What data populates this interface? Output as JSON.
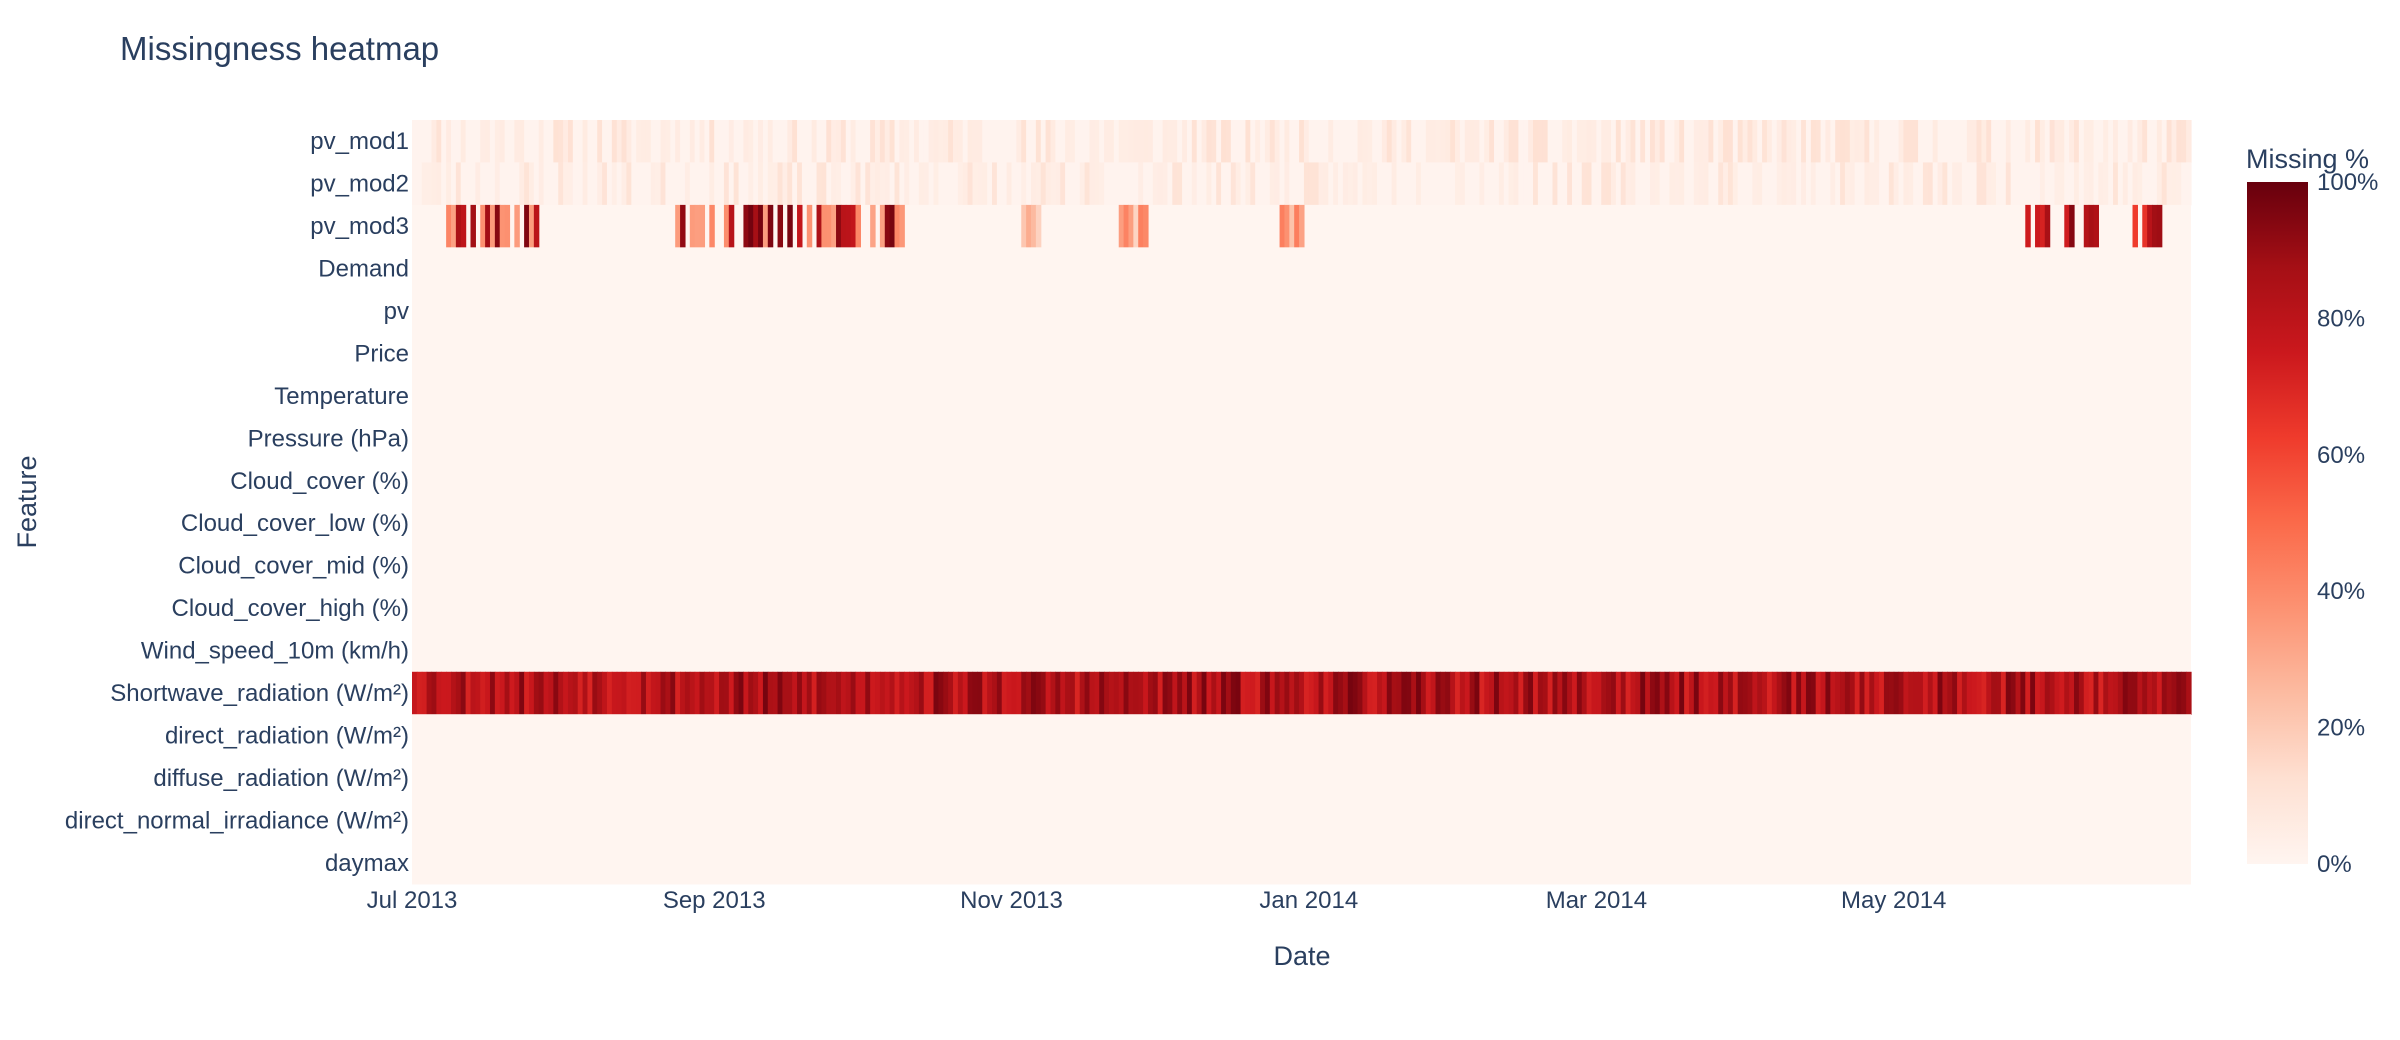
{
  "chart_data": {
    "type": "heatmap",
    "title": "Missingness heatmap",
    "xlabel": "Date",
    "ylabel": "Feature",
    "x_range": [
      "2013-07-01",
      "2014-06-30"
    ],
    "x_ticks": [
      {
        "date": "2013-07-01",
        "label": "Jul 2013"
      },
      {
        "date": "2013-09-01",
        "label": "Sep 2013"
      },
      {
        "date": "2013-11-01",
        "label": "Nov 2013"
      },
      {
        "date": "2014-01-01",
        "label": "Jan 2014"
      },
      {
        "date": "2014-03-01",
        "label": "Mar 2014"
      },
      {
        "date": "2014-05-01",
        "label": "May 2014"
      }
    ],
    "features": [
      "pv_mod1",
      "pv_mod2",
      "pv_mod3",
      "Demand",
      "pv",
      "Price",
      "Temperature",
      "Pressure (hPa)",
      "Cloud_cover (%)",
      "Cloud_cover_low (%)",
      "Cloud_cover_mid (%)",
      "Cloud_cover_high (%)",
      "Wind_speed_10m (km/h)",
      "Shortwave_radiation (W/m²)",
      "direct_radiation (W/m²)",
      "diffuse_radiation (W/m²)",
      "direct_normal_irradiance (W/m²)",
      "daymax"
    ],
    "series_profiles": [
      {
        "name": "pv_mod1",
        "typical_missing_pct": "2–10% daily, scattered"
      },
      {
        "name": "pv_mod2",
        "typical_missing_pct": "1–8% daily, scattered"
      },
      {
        "name": "pv_mod3",
        "typical_missing_pct": "0% except bursts Jul–Aug 2013 (up to ~100%) and mid-June 2014 (~60–90%)"
      },
      {
        "name": "Shortwave_radiation (W/m²)",
        "typical_missing_pct": "≈70–95% every day"
      },
      {
        "name": "all other features",
        "typical_missing_pct": "0%"
      }
    ],
    "colorscale": "Reds",
    "colorscale_stops": [
      "#fff5f0",
      "#fee0d2",
      "#fcbba1",
      "#fc9272",
      "#fb6a4a",
      "#ef3b2c",
      "#cb181d",
      "#a50f15",
      "#67000d"
    ],
    "colorbar": {
      "title": "Missing %",
      "range": [
        0,
        100
      ],
      "ticks": [
        {
          "value": 0,
          "label": "0%"
        },
        {
          "value": 20,
          "label": "20%"
        },
        {
          "value": 40,
          "label": "40%"
        },
        {
          "value": 60,
          "label": "60%"
        },
        {
          "value": 80,
          "label": "80%"
        },
        {
          "value": 100,
          "label": "100%"
        }
      ]
    }
  }
}
